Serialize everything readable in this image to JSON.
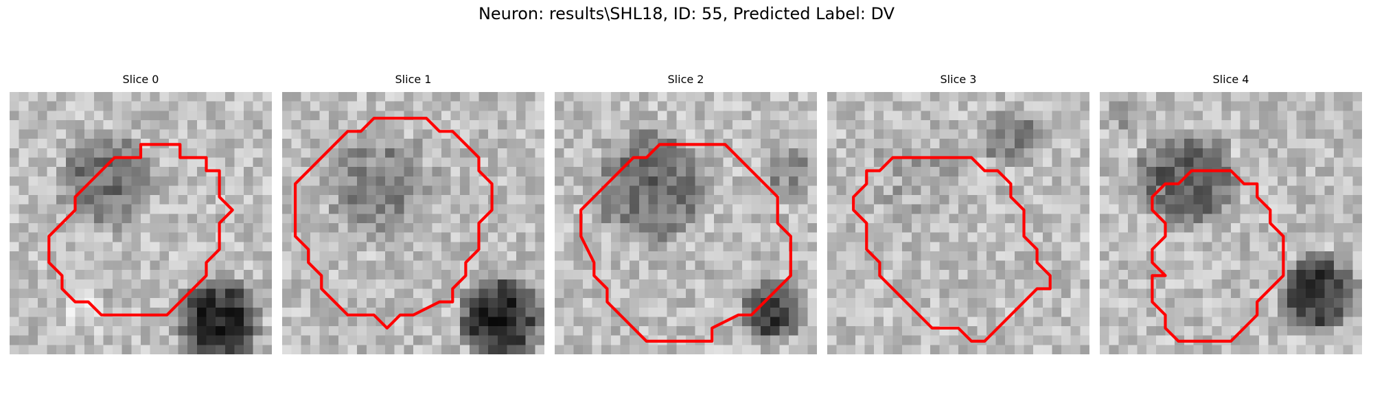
{
  "figure": {
    "title": "Neuron: results\\SHL18, ID: 55, Predicted Label: DV"
  },
  "style": {
    "contour_color": "#ff0000",
    "colormap": "gray"
  },
  "panels": [
    {
      "title": "Slice 0",
      "seed": 11,
      "blobs": [
        {
          "cx": 11,
          "cy": 10,
          "r": 6.2,
          "d": 70
        },
        {
          "cx": 24,
          "cy": 26,
          "r": 5.5,
          "d": 150
        },
        {
          "cx": 9,
          "cy": 25,
          "r": 3,
          "d": -25
        }
      ],
      "contour": [
        [
          11,
          4
        ],
        [
          13,
          4
        ],
        [
          13,
          5
        ],
        [
          15,
          5
        ],
        [
          15,
          6
        ],
        [
          16,
          6
        ],
        [
          16,
          8
        ],
        [
          17,
          9
        ],
        [
          16,
          10
        ],
        [
          16,
          12
        ],
        [
          15,
          13
        ],
        [
          15,
          14
        ],
        [
          14,
          15
        ],
        [
          13,
          16
        ],
        [
          12,
          17
        ],
        [
          7,
          17
        ],
        [
          6,
          16
        ],
        [
          5,
          16
        ],
        [
          4,
          15
        ],
        [
          4,
          14
        ],
        [
          3,
          13
        ],
        [
          3,
          11
        ],
        [
          4,
          10
        ],
        [
          5,
          9
        ],
        [
          5,
          8
        ],
        [
          6,
          7
        ],
        [
          7,
          6
        ],
        [
          8,
          5
        ],
        [
          10,
          5
        ],
        [
          10,
          4
        ]
      ]
    },
    {
      "title": "Slice 1",
      "seed": 23,
      "blobs": [
        {
          "cx": 11,
          "cy": 11,
          "r": 7.2,
          "d": 55
        },
        {
          "cx": 25,
          "cy": 26,
          "r": 5.5,
          "d": 150
        }
      ],
      "contour": [
        [
          8,
          2
        ],
        [
          11,
          2
        ],
        [
          12,
          3
        ],
        [
          13,
          3
        ],
        [
          14,
          4
        ],
        [
          15,
          5
        ],
        [
          15,
          6
        ],
        [
          16,
          7
        ],
        [
          16,
          9
        ],
        [
          15,
          10
        ],
        [
          15,
          12
        ],
        [
          14,
          13
        ],
        [
          14,
          14
        ],
        [
          13,
          15
        ],
        [
          13,
          16
        ],
        [
          12,
          16
        ],
        [
          10,
          17
        ],
        [
          9,
          17
        ],
        [
          8,
          18
        ],
        [
          7,
          17
        ],
        [
          5,
          17
        ],
        [
          4,
          16
        ],
        [
          3,
          15
        ],
        [
          3,
          14
        ],
        [
          2,
          13
        ],
        [
          2,
          12
        ],
        [
          1,
          11
        ],
        [
          1,
          9
        ],
        [
          1,
          7
        ],
        [
          2,
          6
        ],
        [
          3,
          5
        ],
        [
          4,
          4
        ],
        [
          5,
          3
        ],
        [
          6,
          3
        ],
        [
          7,
          2
        ]
      ]
    },
    {
      "title": "Slice 2",
      "seed": 37,
      "blobs": [
        {
          "cx": 11,
          "cy": 11,
          "r": 7.5,
          "d": 75
        },
        {
          "cx": 25,
          "cy": 25,
          "r": 4,
          "d": 130
        },
        {
          "cx": 27,
          "cy": 9,
          "r": 3,
          "d": 60
        }
      ],
      "contour": [
        [
          10,
          4
        ],
        [
          13,
          4
        ],
        [
          14,
          5
        ],
        [
          15,
          6
        ],
        [
          16,
          7
        ],
        [
          17,
          8
        ],
        [
          17,
          10
        ],
        [
          18,
          11
        ],
        [
          18,
          14
        ],
        [
          17,
          15
        ],
        [
          16,
          16
        ],
        [
          15,
          17
        ],
        [
          14,
          17
        ],
        [
          12,
          18
        ],
        [
          12,
          19
        ],
        [
          8,
          19
        ],
        [
          7,
          19
        ],
        [
          6,
          18
        ],
        [
          5,
          17
        ],
        [
          4,
          16
        ],
        [
          4,
          15
        ],
        [
          3,
          14
        ],
        [
          3,
          13
        ],
        [
          2,
          11
        ],
        [
          2,
          9
        ],
        [
          3,
          8
        ],
        [
          4,
          7
        ],
        [
          5,
          6
        ],
        [
          6,
          5
        ],
        [
          7,
          5
        ],
        [
          8,
          4
        ],
        [
          9,
          4
        ]
      ]
    },
    {
      "title": "Slice 3",
      "seed": 49,
      "blobs": [
        {
          "cx": 11,
          "cy": 10,
          "r": 6.5,
          "d": 20
        },
        {
          "cx": 21,
          "cy": 5,
          "r": 4,
          "d": 60
        }
      ],
      "contour": [
        [
          7,
          5
        ],
        [
          11,
          5
        ],
        [
          12,
          6
        ],
        [
          13,
          6
        ],
        [
          14,
          7
        ],
        [
          14,
          8
        ],
        [
          15,
          9
        ],
        [
          15,
          11
        ],
        [
          16,
          12
        ],
        [
          16,
          13
        ],
        [
          17,
          14
        ],
        [
          17,
          15
        ],
        [
          16,
          15
        ],
        [
          15,
          16
        ],
        [
          13,
          18
        ],
        [
          12,
          19
        ],
        [
          11,
          19
        ],
        [
          10,
          18
        ],
        [
          8,
          18
        ],
        [
          7,
          17
        ],
        [
          6,
          16
        ],
        [
          5,
          15
        ],
        [
          4,
          14
        ],
        [
          4,
          13
        ],
        [
          3,
          12
        ],
        [
          3,
          10
        ],
        [
          2,
          9
        ],
        [
          2,
          8
        ],
        [
          3,
          7
        ],
        [
          3,
          6
        ],
        [
          4,
          6
        ],
        [
          5,
          5
        ],
        [
          6,
          5
        ]
      ]
    },
    {
      "title": "Slice 4",
      "seed": 61,
      "blobs": [
        {
          "cx": 10,
          "cy": 10,
          "r": 6.5,
          "d": 95
        },
        {
          "cx": 25,
          "cy": 23,
          "r": 5,
          "d": 140
        },
        {
          "cx": 3,
          "cy": 3,
          "r": 2.5,
          "d": 30
        }
      ],
      "contour": [
        [
          7,
          6
        ],
        [
          10,
          6
        ],
        [
          11,
          7
        ],
        [
          12,
          7
        ],
        [
          12,
          8
        ],
        [
          13,
          9
        ],
        [
          13,
          10
        ],
        [
          14,
          11
        ],
        [
          14,
          14
        ],
        [
          13,
          15
        ],
        [
          12,
          16
        ],
        [
          12,
          17
        ],
        [
          11,
          18
        ],
        [
          10,
          19
        ],
        [
          6,
          19
        ],
        [
          5,
          18
        ],
        [
          5,
          17
        ],
        [
          4,
          16
        ],
        [
          4,
          15
        ],
        [
          4,
          14
        ],
        [
          5,
          14
        ],
        [
          4,
          13
        ],
        [
          4,
          12
        ],
        [
          5,
          11
        ],
        [
          5,
          10
        ],
        [
          4,
          9
        ],
        [
          4,
          8
        ],
        [
          5,
          7
        ],
        [
          6,
          7
        ]
      ]
    }
  ]
}
